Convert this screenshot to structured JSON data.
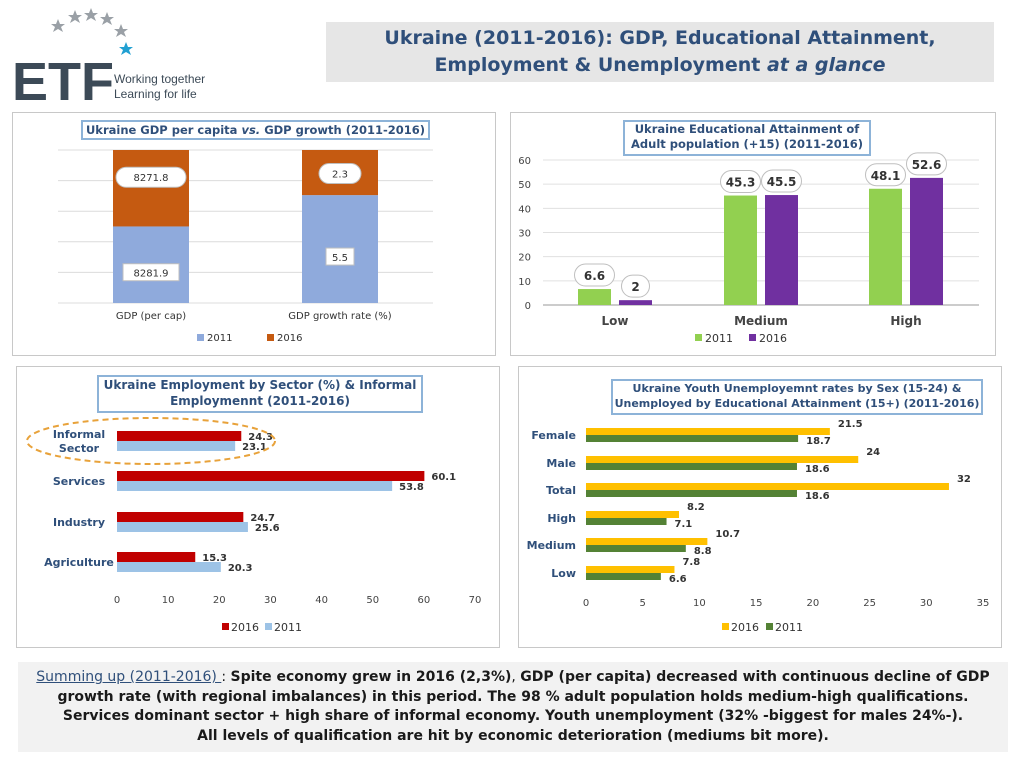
{
  "logo": {
    "acronym": "ETF",
    "tagline1": "Working together",
    "tagline2": "Learning for life"
  },
  "header": {
    "title_line1": "Ukraine (2011-2016): GDP, Educational Attainment,",
    "title_line2_plain": "Employment & Unemployment ",
    "title_line2_italic": "at a glance"
  },
  "colors": {
    "y2011_blue": "#8faadc",
    "y2016_orange": "#c55a11",
    "edu_2011": "#92d050",
    "edu_2016": "#7030a0",
    "emp_2016": "#c00000",
    "emp_2011": "#9dc3e6",
    "youth_2016": "#ffc000",
    "youth_2011": "#548235",
    "title_text": "#2f4f7a"
  },
  "gdp_chart": {
    "title_parts": [
      "Ukraine GDP per capita ",
      "vs.",
      "GDP growth (2011-2016)"
    ],
    "legend": [
      "2011",
      "2016"
    ],
    "chart_data": {
      "type": "bar",
      "stacked": true,
      "normalized": true,
      "categories": [
        "GDP (per cap)",
        "GDP growth rate (%)"
      ],
      "series": [
        {
          "name": "2011",
          "values": [
            8281.9,
            5.5
          ]
        },
        {
          "name": "2016",
          "values": [
            8271.8,
            2.3
          ]
        }
      ],
      "value_labels": [
        [
          "8281.9",
          "5.5"
        ],
        [
          "8271.8",
          "2.3"
        ]
      ]
    }
  },
  "edu_chart": {
    "title_lines": [
      "Ukraine Educational Attainment of",
      "Adult population (+15) (2011-2016)"
    ],
    "legend": [
      "2011",
      "2016"
    ],
    "chart_data": {
      "type": "bar",
      "categories": [
        "Low",
        "Medium",
        "High"
      ],
      "series": [
        {
          "name": "2011",
          "values": [
            6.6,
            45.3,
            48.1
          ]
        },
        {
          "name": "2016",
          "values": [
            2,
            45.5,
            52.6
          ]
        }
      ],
      "ylim": [
        0,
        60
      ],
      "yticks": [
        "0",
        "10",
        "20",
        "30",
        "40",
        "50",
        "60"
      ]
    }
  },
  "emp_chart": {
    "title_lines": [
      "Ukraine Employment by Sector (%) & Informal",
      "Employmennt (2011-2016)"
    ],
    "legend": [
      "2016",
      "2011"
    ],
    "chart_data": {
      "type": "bar",
      "orientation": "horizontal",
      "categories": [
        "Informal Sector",
        "Services",
        "Industry",
        "Agriculture"
      ],
      "category_lines": [
        [
          "Informal",
          "Sector"
        ],
        [
          "Services"
        ],
        [
          "Industry"
        ],
        [
          "Agriculture"
        ]
      ],
      "series": [
        {
          "name": "2016",
          "values": [
            24.3,
            60.1,
            24.7,
            15.3
          ]
        },
        {
          "name": "2011",
          "values": [
            23.1,
            53.8,
            25.6,
            20.3
          ]
        }
      ],
      "xlim": [
        0,
        70
      ],
      "xticks": [
        "0",
        "10",
        "20",
        "30",
        "40",
        "50",
        "60",
        "70"
      ]
    }
  },
  "youth_chart": {
    "title_lines": [
      "Ukraine Youth Unemployemnt rates by Sex (15-24) &",
      "Unemployed by Educational Attainment (15+) (2011-2016)"
    ],
    "legend": [
      "2016",
      "2011"
    ],
    "chart_data": {
      "type": "bar",
      "orientation": "horizontal",
      "categories": [
        "Female",
        "Male",
        "Total",
        "High",
        "Medium",
        "Low"
      ],
      "series": [
        {
          "name": "2016",
          "values": [
            21.5,
            24,
            32,
            8.2,
            10.7,
            7.8
          ]
        },
        {
          "name": "2011",
          "values": [
            18.7,
            18.6,
            18.6,
            7.1,
            8.8,
            6.6
          ]
        }
      ],
      "xlim": [
        0,
        35
      ],
      "xticks": [
        "0",
        "5",
        "10",
        "15",
        "20",
        "25",
        "30",
        "35"
      ]
    }
  },
  "summary": {
    "lead": "Summing up (2011-2016) ",
    "colon": ": ",
    "line1a": "Spite economy grew in 2016 (2,3%)",
    "line1b": ", ",
    "line1c": "GDP (per capita) decreased with continuous decline of GDP",
    "line2": "growth rate (with regional imbalances) in this period. The 98 % adult population holds medium-high qualifications.",
    "line3": "Services dominant sector + high share of informal economy. Youth unemployment (32% -biggest for males 24%-).",
    "line4": "All levels of qualification are hit by economic deterioration (mediums bit more)."
  }
}
